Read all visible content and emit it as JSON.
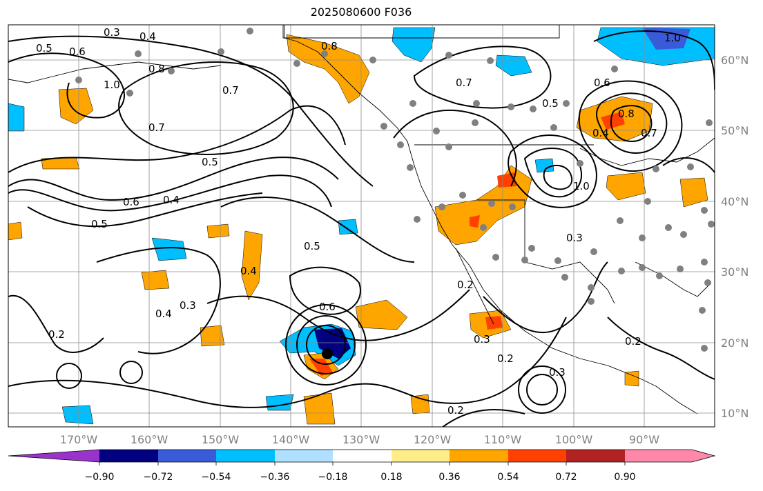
{
  "title": "2025080600 F036",
  "lon_labels": [
    "170°W",
    "160°W",
    "150°W",
    "140°W",
    "130°W",
    "120°W",
    "110°W",
    "100°W",
    "90°W"
  ],
  "lat_labels": [
    "60°N",
    "50°N",
    "40°N",
    "30°N",
    "20°N",
    "10°N"
  ],
  "colorbar": {
    "colors": [
      "#9933cc",
      "#000080",
      "#3a5bd9",
      "#00bfff",
      "#b0e0ff",
      "#ffffff",
      "#ffee88",
      "#ffa500",
      "#ff4000",
      "#b22222",
      "#ff88aa"
    ],
    "tick_labels": [
      "−0.90",
      "−0.72",
      "−0.54",
      "−0.36",
      "−0.18",
      "0.18",
      "0.36",
      "0.54",
      "0.72",
      "0.90"
    ]
  },
  "contour_labels": [
    "0.3",
    "0.4",
    "0.5",
    "0.6",
    "0.8",
    "1.0",
    "0.7",
    "0.5",
    "0.6",
    "0.4",
    "0.5",
    "0.4",
    "0.3",
    "0.2",
    "0.4",
    "0.6",
    "0.5",
    "0.7",
    "0.8",
    "0.7",
    "0.5",
    "0.6",
    "0.8",
    "0.4",
    "0.7",
    "1.0",
    "0.3",
    "0.2",
    "0.3",
    "0.2",
    "0.2",
    "0.3",
    "0.2",
    "1.0"
  ],
  "storm_marker": "tropical-cyclone-center"
}
